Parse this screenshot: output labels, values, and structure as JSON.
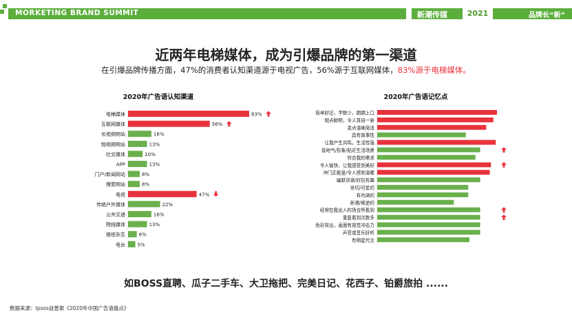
{
  "header": {
    "summit": "MORKETING BRAND SUMMIT",
    "brand": "新潮传媒",
    "year": "2021",
    "slogan": "品牌长“新”",
    "color": "#5cae3c"
  },
  "title": "近两年电梯媒体，成为引爆品牌的第一渠道",
  "subtitle": {
    "part1": "在引爆品牌传播方面，47%的消费者认知渠道源于电视广告，56%源于互联网媒体，",
    "highlight": "83%源于电梯媒体。"
  },
  "chart_data": [
    {
      "type": "bar",
      "orientation": "horizontal",
      "title": "2020年广告语认知渠道",
      "categories": [
        "电梯媒体",
        "互联网媒体",
        "长视频网站",
        "短视频网站",
        "社交媒体",
        "APP",
        "门户/新闻网站",
        "搜索网站",
        "电视",
        "传统户外媒体",
        "公共交通",
        "院线媒体",
        "报纸杂志",
        "电台"
      ],
      "values": [
        83,
        56,
        16,
        13,
        10,
        13,
        8,
        8,
        47,
        22,
        16,
        13,
        6,
        5
      ],
      "value_labels": [
        "83%",
        "56%",
        "16%",
        "13%",
        "10%",
        "13%",
        "8%",
        "8%",
        "47%",
        "22%",
        "16%",
        "13%",
        "6%",
        "5%"
      ],
      "highlight": [
        true,
        true,
        false,
        false,
        false,
        false,
        false,
        false,
        true,
        false,
        false,
        false,
        false,
        false
      ],
      "trend": [
        "up",
        "up",
        "",
        "",
        "",
        "",
        "",
        "",
        "down",
        "",
        "",
        "",
        "",
        ""
      ],
      "colors": {
        "highlight": "#e8323c",
        "normal": "#6ab04c"
      }
    },
    {
      "type": "bar",
      "orientation": "horizontal",
      "title": "2020年广告语记忆点",
      "categories": [
        "简单好记，字数少，朗朗上口",
        "观点鲜明，令人耳目一新",
        "卖点清晰简洁",
        "具有故事性",
        "让我产生共鸣，生活性强",
        "接地气/形象/贴近生活场景",
        "符合我的需求",
        "令人愉快，让我感受到美好",
        "冲门正能量/令人感到温暖",
        "幽默诙谐/好玩有趣",
        "亲切/可爱的",
        "有内涵的",
        "新潮/叛逆的",
        "经常在我出入的场合所看到",
        "重复看到次数多",
        "色彩突出，画面有视觉冲击力",
        "声音或音乐好听",
        "有明星代言"
      ],
      "values": [
        100,
        97,
        91,
        74,
        99,
        86,
        82,
        95,
        94,
        86,
        76,
        76,
        64,
        86,
        86,
        86,
        86,
        77
      ],
      "highlight": [
        true,
        true,
        true,
        false,
        true,
        false,
        false,
        true,
        true,
        false,
        false,
        false,
        false,
        false,
        false,
        false,
        false,
        false
      ],
      "trend": [
        "",
        "",
        "",
        "",
        "",
        "up",
        "",
        "up",
        "",
        "",
        "",
        "",
        "",
        "up",
        "up",
        "",
        "",
        ""
      ],
      "colors": {
        "highlight": "#e8323c",
        "normal": "#6ab04c"
      }
    }
  ],
  "brands_line": "如BOSS直聘、瓜子二手车、大卫拖把、完美日记、花西子、铂爵旅拍 ......",
  "source": "数据来源：Ipsos益普索《2020年中国广告语盘点》"
}
